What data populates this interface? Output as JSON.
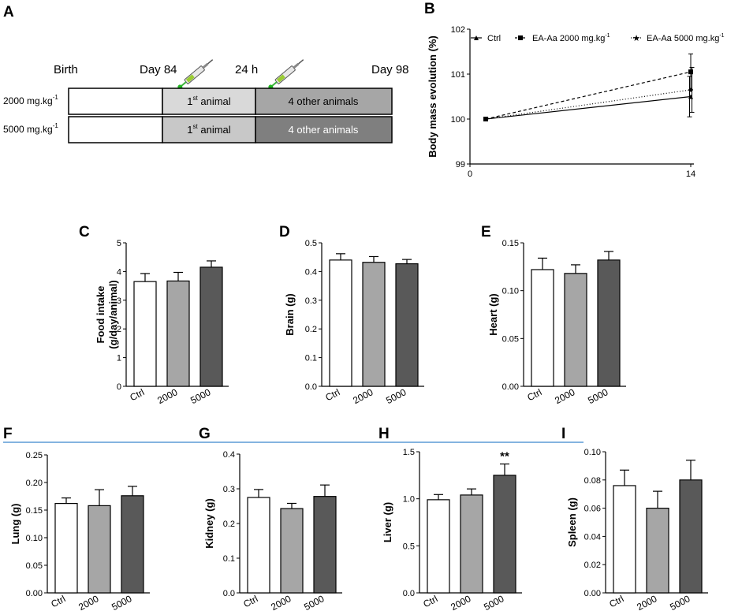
{
  "colors": {
    "ctrl": "#ffffff",
    "dose2000": "#a6a6a6",
    "dose5000": "#595959",
    "separator": "#5b9bd5",
    "first_animal_fill": "#d9d9d9",
    "first_animal_fill_5000": "#c8c8c8",
    "other_2000": "#a6a6a6",
    "other_5000": "#7f7f7f",
    "needle": "#22b822"
  },
  "panel_a": {
    "label": "A",
    "timeline": {
      "birth": "Birth",
      "day84": "Day 84",
      "h24": "24 h",
      "day98": "Day 98"
    },
    "rows": [
      {
        "dose_main": "2000 mg.kg",
        "dose_sup": "-1",
        "first_pre": "1",
        "first_sup": "st",
        "first_post": " animal",
        "others": "4 other animals"
      },
      {
        "dose_main": "5000 mg.kg",
        "dose_sup": "-1",
        "first_pre": "1",
        "first_sup": "st",
        "first_post": " animal",
        "others": "4 other animals"
      }
    ],
    "icons": [
      "syringe-icon",
      "syringe-icon"
    ]
  },
  "panel_b": {
    "label": "B",
    "legend": [
      {
        "main": "Ctrl",
        "sup": ""
      },
      {
        "main": "EA-Aa 2000 mg.kg",
        "sup": "-1"
      },
      {
        "main": "EA-Aa 5000 mg.kg",
        "sup": "-1"
      }
    ]
  },
  "chart_data": [
    {
      "id": "B",
      "type": "line",
      "title": "",
      "ylabel": "Body mass evolution (%)",
      "xlabel": "",
      "x_ticks": [
        "0",
        "14"
      ],
      "y_ticks": [
        "99",
        "100",
        "101",
        "102"
      ],
      "xlim": [
        0,
        14
      ],
      "ylim": [
        99,
        102
      ],
      "series": [
        {
          "name": "Ctrl",
          "x": [
            1,
            14
          ],
          "y": [
            100,
            100.5
          ],
          "style": "solid",
          "marker": "triangle",
          "error": [
            0,
            0.45
          ]
        },
        {
          "name": "EA-Aa 2000 mg.kg-1",
          "x": [
            1,
            14
          ],
          "y": [
            100,
            101.05
          ],
          "style": "dashed",
          "marker": "square",
          "error": [
            0,
            0.4
          ]
        },
        {
          "name": "EA-Aa 5000 mg.kg-1",
          "x": [
            1,
            14
          ],
          "y": [
            100,
            100.65
          ],
          "style": "dotted",
          "marker": "star",
          "error": [
            0,
            0.5
          ]
        }
      ]
    },
    {
      "id": "C",
      "type": "bar",
      "ylabel": [
        "Food intake",
        "(g/day/animal)"
      ],
      "categories": [
        "Ctrl",
        "2000",
        "5000"
      ],
      "values": [
        3.65,
        3.67,
        4.15
      ],
      "errors": [
        0.28,
        0.3,
        0.22
      ],
      "ylim": [
        0,
        5
      ],
      "y_ticks": [
        "0",
        "1",
        "2",
        "3",
        "4",
        "5"
      ],
      "stars": [
        "",
        "",
        ""
      ]
    },
    {
      "id": "D",
      "type": "bar",
      "ylabel": [
        "Brain (g)"
      ],
      "categories": [
        "Ctrl",
        "2000",
        "5000"
      ],
      "values": [
        0.44,
        0.432,
        0.427
      ],
      "errors": [
        0.022,
        0.02,
        0.015
      ],
      "ylim": [
        0,
        0.5
      ],
      "y_ticks": [
        "0.0",
        "0.1",
        "0.2",
        "0.3",
        "0.4",
        "0.5"
      ],
      "stars": [
        "",
        "",
        ""
      ]
    },
    {
      "id": "E",
      "type": "bar",
      "ylabel": [
        "Heart (g)"
      ],
      "categories": [
        "Ctrl",
        "2000",
        "5000"
      ],
      "values": [
        0.122,
        0.118,
        0.132
      ],
      "errors": [
        0.012,
        0.009,
        0.009
      ],
      "ylim": [
        0,
        0.15
      ],
      "y_ticks": [
        "0.00",
        "0.05",
        "0.10",
        "0.15"
      ],
      "stars": [
        "",
        "",
        ""
      ]
    },
    {
      "id": "F",
      "type": "bar",
      "ylabel": [
        "Lung (g)"
      ],
      "categories": [
        "Ctrl",
        "2000",
        "5000"
      ],
      "values": [
        0.162,
        0.158,
        0.176
      ],
      "errors": [
        0.01,
        0.029,
        0.017
      ],
      "ylim": [
        0,
        0.25
      ],
      "y_ticks": [
        "0.00",
        "0.05",
        "0.10",
        "0.15",
        "0.20",
        "0.25"
      ],
      "stars": [
        "",
        "",
        ""
      ]
    },
    {
      "id": "G",
      "type": "bar",
      "ylabel": [
        "Kidney (g)"
      ],
      "categories": [
        "Ctrl",
        "2000",
        "5000"
      ],
      "values": [
        0.275,
        0.243,
        0.278
      ],
      "errors": [
        0.023,
        0.015,
        0.033
      ],
      "ylim": [
        0,
        0.4
      ],
      "y_ticks": [
        "0.0",
        "0.1",
        "0.2",
        "0.3",
        "0.4"
      ],
      "stars": [
        "",
        "",
        ""
      ]
    },
    {
      "id": "H",
      "type": "bar",
      "ylabel": [
        "Liver (g)"
      ],
      "categories": [
        "Ctrl",
        "2000",
        "5000"
      ],
      "values": [
        0.99,
        1.04,
        1.25
      ],
      "errors": [
        0.055,
        0.065,
        0.12
      ],
      "ylim": [
        0,
        1.5
      ],
      "y_ticks": [
        "0.0",
        "0.5",
        "1.0",
        "1.5"
      ],
      "stars": [
        "",
        "",
        "**"
      ]
    },
    {
      "id": "I",
      "type": "bar",
      "ylabel": [
        "Spleen (g)"
      ],
      "categories": [
        "Ctrl",
        "2000",
        "5000"
      ],
      "values": [
        0.076,
        0.06,
        0.08
      ],
      "errors": [
        0.011,
        0.012,
        0.014
      ],
      "ylim": [
        0,
        0.1
      ],
      "y_ticks": [
        "0.00",
        "0.02",
        "0.04",
        "0.06",
        "0.08",
        "0.10"
      ],
      "stars": [
        "",
        "",
        ""
      ]
    }
  ]
}
